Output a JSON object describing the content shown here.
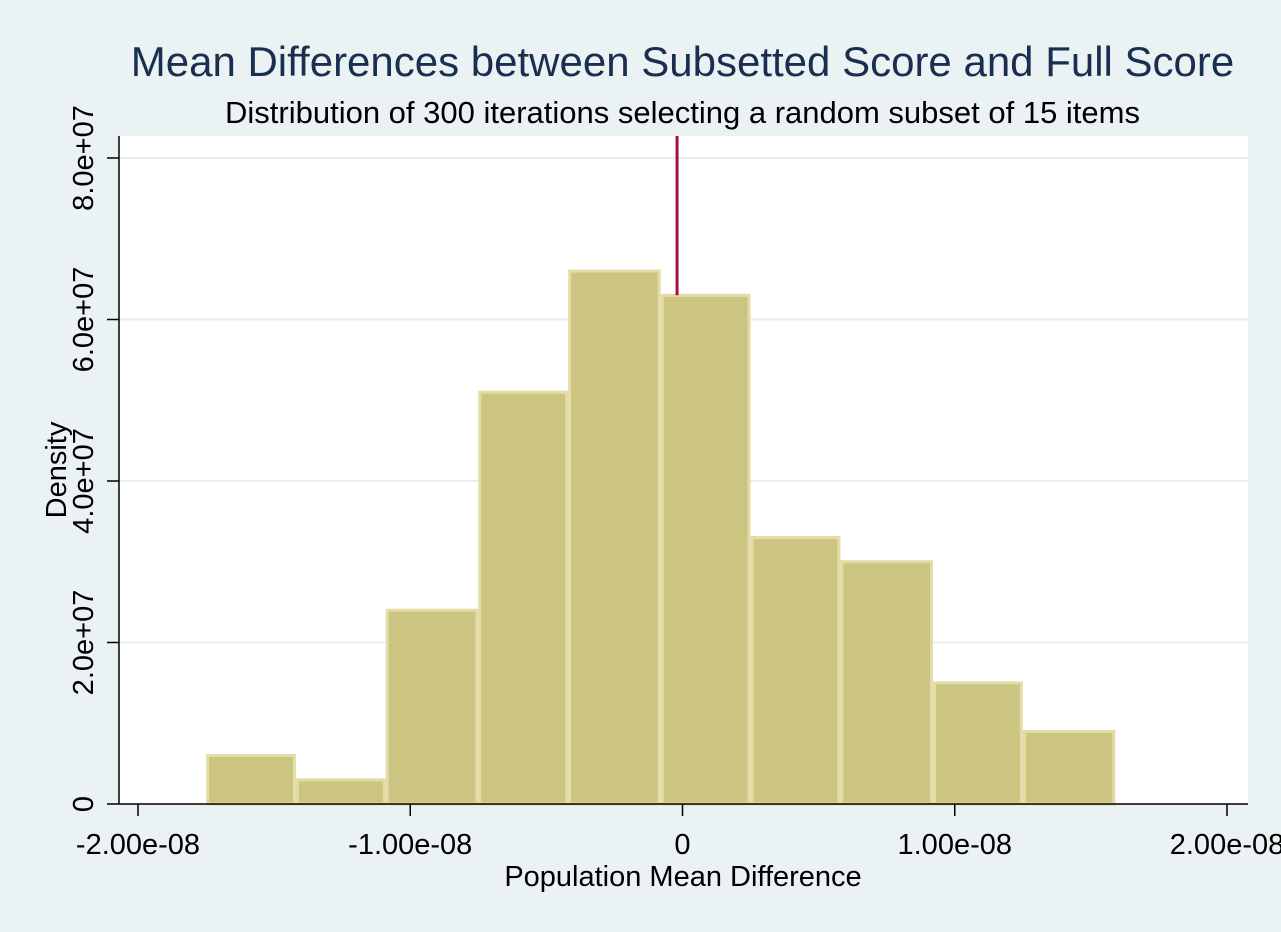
{
  "chart_data": {
    "type": "bar",
    "title": "Mean Differences between Subsetted Score and Full Score",
    "subtitle": "Distribution of 300 iterations selecting a random subset of 15 items",
    "xlabel": "Population Mean Difference",
    "ylabel": "Density",
    "xlim": [
      -2e-08,
      2e-08
    ],
    "ylim": [
      0,
      80000000.0
    ],
    "x_ticks": [
      {
        "value": -2e-08,
        "label": "-2.00e-08"
      },
      {
        "value": -1e-08,
        "label": "-1.00e-08"
      },
      {
        "value": 0,
        "label": "0"
      },
      {
        "value": 1e-08,
        "label": "1.00e-08"
      },
      {
        "value": 2e-08,
        "label": "2.00e-08"
      }
    ],
    "y_ticks": [
      {
        "value": 0,
        "label": "0"
      },
      {
        "value": 20000000.0,
        "label": "2.0e+07"
      },
      {
        "value": 40000000.0,
        "label": "4.0e+07"
      },
      {
        "value": 60000000.0,
        "label": "6.0e+07"
      },
      {
        "value": 80000000.0,
        "label": "8.0e+07"
      }
    ],
    "bins": [
      {
        "x0": -1.75e-08,
        "x1": -1.42e-08,
        "value": 6000000.0
      },
      {
        "x0": -1.42e-08,
        "x1": -1.09e-08,
        "value": 3000000.0
      },
      {
        "x0": -1.09e-08,
        "x1": -7.5e-09,
        "value": 24000000.0
      },
      {
        "x0": -7.5e-09,
        "x1": -4.2e-09,
        "value": 51000000.0
      },
      {
        "x0": -4.2e-09,
        "x1": -8e-10,
        "value": 66000000.0
      },
      {
        "x0": -8e-10,
        "x1": 2.5e-09,
        "value": 63000000.0
      },
      {
        "x0": 2.5e-09,
        "x1": 5.8e-09,
        "value": 33000000.0
      },
      {
        "x0": 5.8e-09,
        "x1": 9.2e-09,
        "value": 30000000.0
      },
      {
        "x0": 9.2e-09,
        "x1": 1.25e-08,
        "value": 15000000.0
      },
      {
        "x0": 1.25e-08,
        "x1": 1.59e-08,
        "value": 9000000.0
      }
    ],
    "reference_line": {
      "x": -2e-10
    },
    "grid": true,
    "colors": {
      "bar_fill": "#ccc581",
      "bar_stroke": "#e4dca6",
      "reference_line": "#a5103f",
      "grid": "#e6eff0",
      "title": "#1a2e50",
      "plot_background": "#ffffff",
      "page_background": "#eaf2f3"
    }
  }
}
